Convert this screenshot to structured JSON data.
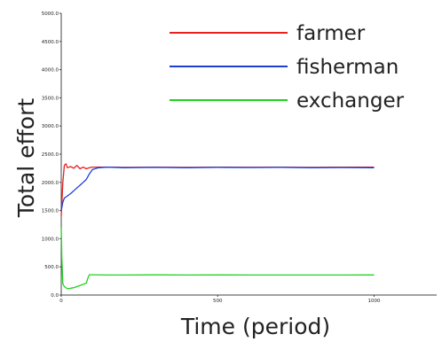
{
  "chart_data": {
    "type": "line",
    "xlabel": "Time (period)",
    "ylabel": "Total effort",
    "xlim": [
      0,
      1200
    ],
    "ylim": [
      0,
      5000
    ],
    "x_ticks": [
      0,
      500,
      1000
    ],
    "x_tick_labels": [
      "0",
      "500",
      "1000"
    ],
    "y_ticks": [
      0,
      500,
      1000,
      1500,
      2000,
      2500,
      3000,
      3500,
      4000,
      4500,
      5000
    ],
    "y_tick_labels": [
      "0.0",
      "500.0",
      "1000.0",
      "1500.0",
      "2000.0",
      "2500.0",
      "3000.0",
      "3500.0",
      "4000.0",
      "4500.0",
      "5000.0"
    ],
    "grid": false,
    "legend_position": "top-right",
    "series": [
      {
        "name": "farmer",
        "color": "#e8201e",
        "x": [
          0,
          5,
          10,
          15,
          20,
          30,
          40,
          50,
          60,
          70,
          80,
          90,
          100,
          150,
          200,
          300,
          400,
          500,
          600,
          700,
          800,
          900,
          1000
        ],
        "y": [
          1400,
          2000,
          2300,
          2330,
          2260,
          2280,
          2250,
          2300,
          2240,
          2270,
          2240,
          2260,
          2270,
          2270,
          2265,
          2270,
          2265,
          2270,
          2268,
          2270,
          2266,
          2270,
          2270
        ]
      },
      {
        "name": "fisherman",
        "color": "#1c3fd4",
        "x": [
          0,
          5,
          10,
          20,
          30,
          40,
          50,
          60,
          70,
          80,
          90,
          100,
          120,
          150,
          200,
          300,
          400,
          500,
          600,
          700,
          800,
          900,
          1000
        ],
        "y": [
          1500,
          1650,
          1720,
          1760,
          1800,
          1850,
          1900,
          1950,
          2000,
          2050,
          2150,
          2230,
          2260,
          2270,
          2260,
          2265,
          2260,
          2265,
          2262,
          2265,
          2260,
          2262,
          2260
        ]
      },
      {
        "name": "exchanger",
        "color": "#1fd21f",
        "x": [
          0,
          2,
          5,
          10,
          20,
          40,
          60,
          70,
          80,
          85,
          90,
          100,
          150,
          200,
          300,
          400,
          500,
          600,
          700,
          800,
          900,
          1000
        ],
        "y": [
          1200,
          650,
          200,
          150,
          110,
          130,
          170,
          190,
          210,
          300,
          360,
          360,
          355,
          355,
          358,
          355,
          357,
          355,
          356,
          355,
          356,
          357
        ]
      }
    ]
  }
}
